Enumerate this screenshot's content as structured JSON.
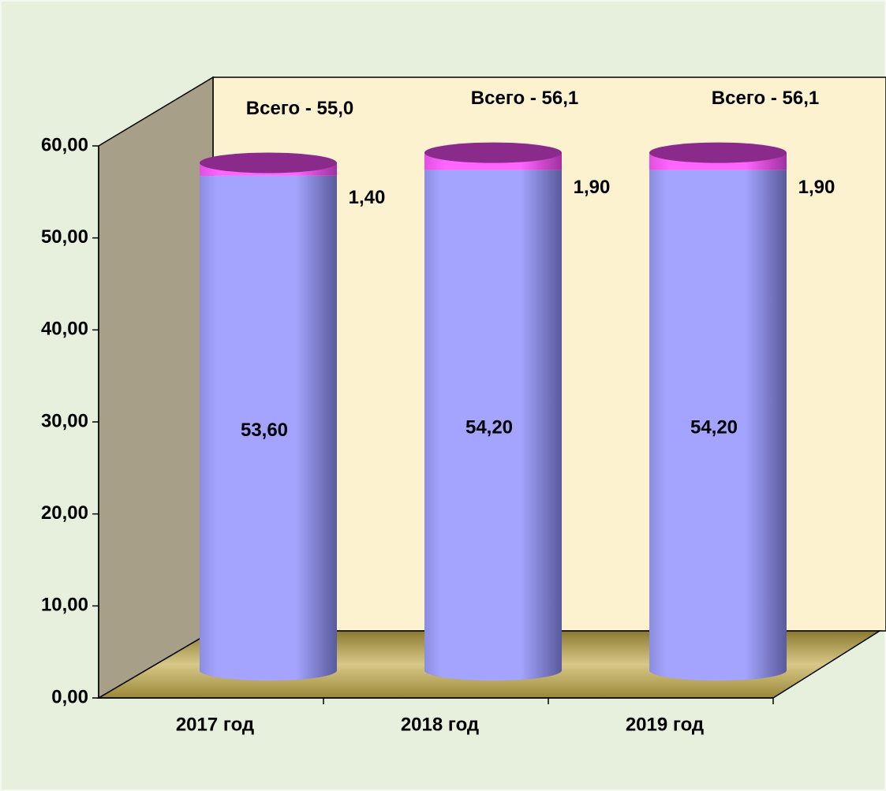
{
  "chart_data": {
    "type": "bar3d-cylinder-stacked",
    "categories": [
      "2017 год",
      "2018 год",
      "2019 год"
    ],
    "series": [
      {
        "color": "#a4a4ff",
        "values": [
          53.6,
          54.2,
          54.2
        ],
        "value_labels": [
          "53,60",
          "54,20",
          "54,20"
        ]
      },
      {
        "color": "#ff66ff",
        "values": [
          1.4,
          1.9,
          1.9
        ],
        "value_labels": [
          "1,40",
          "1,90",
          "1,90"
        ]
      }
    ],
    "annotations": [
      "Всего - 55,0",
      "Всего - 56,1",
      "Всего - 56,1"
    ],
    "ylim": [
      0,
      60
    ],
    "yticks": [
      {
        "value": 0,
        "label": "0,00"
      },
      {
        "value": 10,
        "label": "10,00"
      },
      {
        "value": 20,
        "label": "20,00"
      },
      {
        "value": 30,
        "label": "30,00"
      },
      {
        "value": 40,
        "label": "40,00"
      },
      {
        "value": 50,
        "label": "50,00"
      },
      {
        "value": 60,
        "label": "60,00"
      }
    ]
  }
}
